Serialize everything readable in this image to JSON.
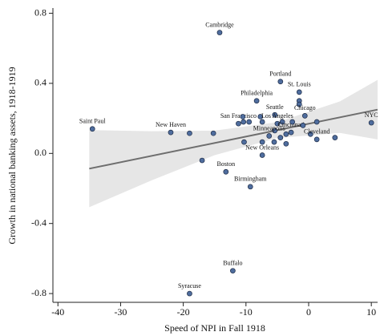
{
  "chart_data": {
    "type": "scatter",
    "xlabel": "Speed of NPI in Fall 1918",
    "ylabel": "Growth in national banking assets, 1918-1919",
    "x": [
      -34.5,
      -22,
      -19,
      -15.2,
      -17,
      -14.2,
      -13.2,
      -9.3,
      -12.1,
      -19,
      -11.2,
      -10.5,
      -10.4,
      -9.5,
      -10.3,
      -7.7,
      -7.4,
      -8.3,
      -4.5,
      -1.5,
      -1.5,
      -1.5,
      -5.4,
      -5,
      -4.2,
      -5.4,
      -6.3,
      -5.5,
      -4.5,
      -3.6,
      -2.8,
      -2.6,
      -7.4,
      -7.4,
      -3.6,
      -0.6,
      -0.9,
      0.3,
      1.3,
      1.3,
      4.2,
      10
    ],
    "values": [
      0.14,
      0.12,
      0.115,
      0.115,
      -0.04,
      0.69,
      -0.105,
      -0.19,
      -0.67,
      -0.8,
      0.17,
      0.21,
      0.18,
      0.18,
      0.065,
      0.21,
      0.18,
      0.3,
      0.41,
      0.35,
      0.3,
      0.28,
      0.22,
      0.17,
      0.18,
      0.13,
      0.1,
      0.065,
      0.09,
      0.11,
      0.12,
      0.18,
      0.065,
      -0.01,
      0.055,
      0.215,
      0.16,
      0.11,
      0.18,
      0.08,
      0.09,
      0.175
    ],
    "point_labels": [
      "Saint Paul",
      "New Haven",
      null,
      null,
      null,
      "Cambridge",
      "Boston",
      "Birmingham",
      "Buffalo",
      "Syracuse",
      "San Francisco",
      null,
      null,
      null,
      null,
      null,
      null,
      "Philadelphia",
      "Portland",
      "St. Louis",
      null,
      null,
      "Seattle",
      "Los Angeles",
      null,
      null,
      "Minneapolis",
      null,
      null,
      null,
      "Cincinnati",
      null,
      null,
      "New Orleans",
      null,
      "Chicago",
      null,
      null,
      null,
      "Cleveland",
      null,
      "NYC"
    ],
    "color": "#4f6d9e",
    "fit": {
      "x": [
        -35,
        11
      ],
      "y": [
        -0.087,
        0.25
      ],
      "color": "#6e6e6e"
    },
    "band": {
      "x": [
        -35,
        -25,
        -15,
        -5,
        5,
        11
      ],
      "lower": [
        -0.307,
        -0.153,
        -0.01,
        0.088,
        0.117,
        0.08
      ],
      "upper": [
        0.133,
        0.127,
        0.13,
        0.178,
        0.297,
        0.42
      ],
      "color": "#e6e6e6"
    },
    "xlim": [
      -40.8,
      11
    ],
    "ylim": [
      -0.85,
      0.83
    ],
    "xticks": [
      -40,
      -30,
      -20,
      -10,
      0,
      10
    ],
    "yticks": [
      0.8,
      0.4,
      {
        "value": 0,
        "label": "0.0"
      },
      -0.4,
      -0.8
    ]
  }
}
